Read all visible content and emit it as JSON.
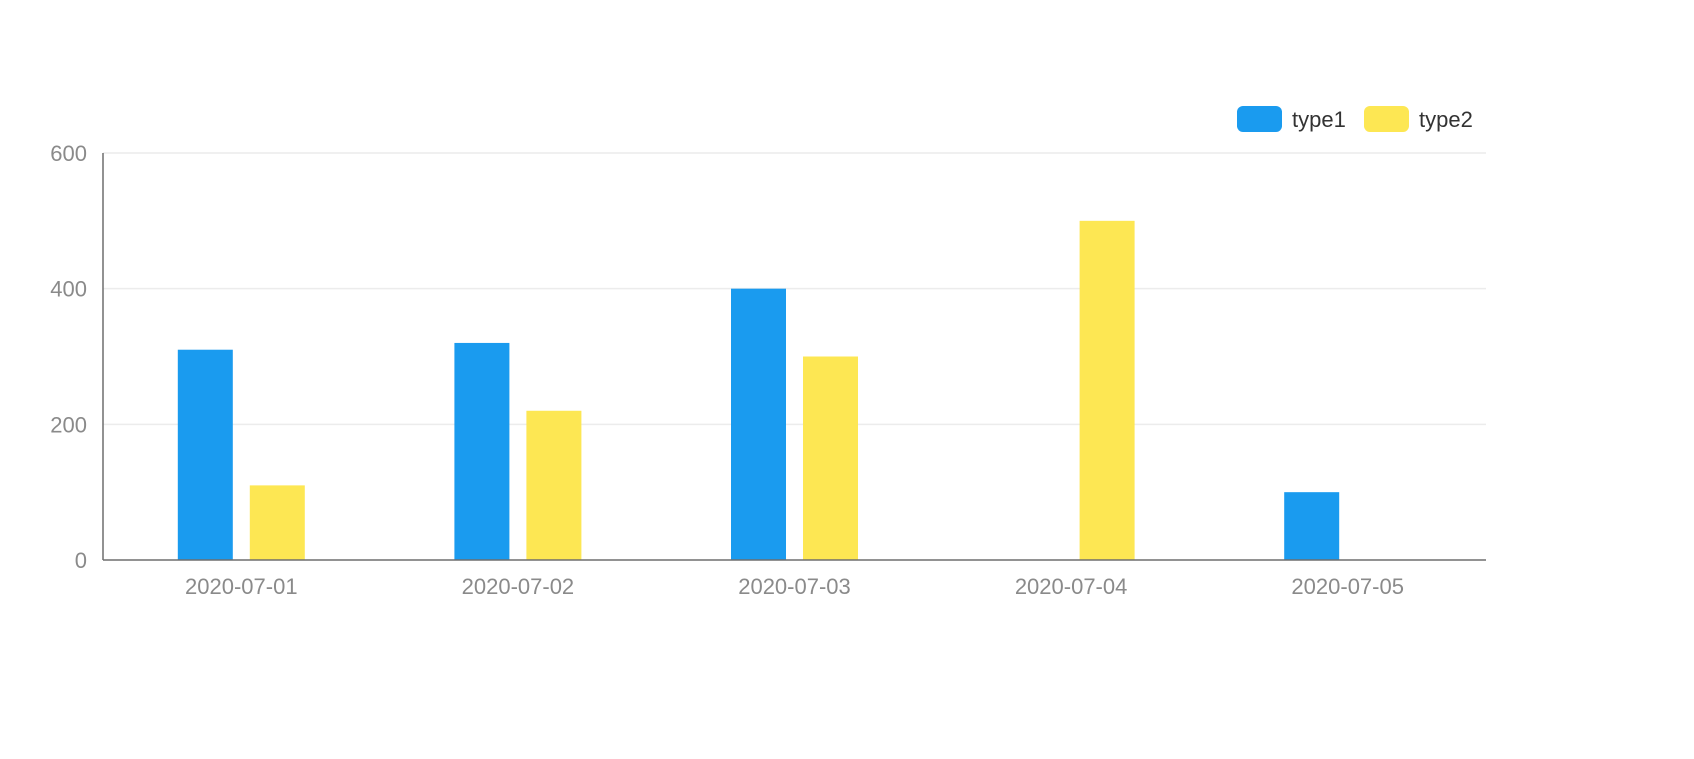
{
  "chart_data": {
    "type": "bar",
    "categories": [
      "2020-07-01",
      "2020-07-02",
      "2020-07-03",
      "2020-07-04",
      "2020-07-05"
    ],
    "series": [
      {
        "name": "type1",
        "color": "#1a9bef",
        "values": [
          310,
          320,
          400,
          0,
          100
        ]
      },
      {
        "name": "type2",
        "color": "#fde753",
        "values": [
          110,
          220,
          300,
          500,
          0
        ]
      }
    ],
    "ylim": [
      0,
      600
    ],
    "yticks": [
      0,
      200,
      400,
      600
    ],
    "grid": true,
    "legend": "top-right",
    "colors": {
      "grid": "#ececec",
      "axis": "#6e6e6e",
      "tick_text": "#8a8a8a",
      "legend_text": "#333333"
    }
  }
}
